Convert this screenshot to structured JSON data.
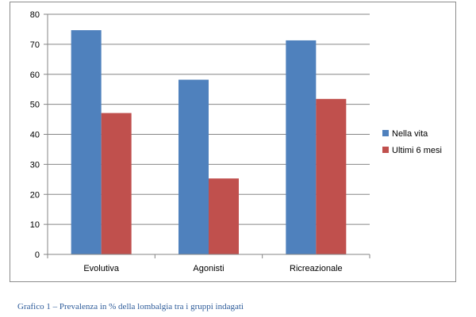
{
  "chart_data": {
    "type": "bar",
    "categories": [
      "Evolutiva",
      "Agonisti",
      "Ricreazionale"
    ],
    "series": [
      {
        "name": "Nella vita",
        "values": [
          74.7,
          58.2,
          71.3
        ],
        "color": "#4f81bd"
      },
      {
        "name": "Ultimi 6 mesi",
        "values": [
          47.1,
          25.3,
          51.8
        ],
        "color": "#c0504d"
      }
    ],
    "y_ticks": [
      "0",
      "10",
      "20",
      "30",
      "40",
      "50",
      "60",
      "70",
      "80"
    ],
    "ylim": [
      0,
      80
    ],
    "grid": true,
    "legend_position": "right",
    "title": "",
    "xlabel": "",
    "ylabel": ""
  },
  "caption": "Grafico 1 – Prevalenza in % della lombalgia tra i gruppi indagati"
}
